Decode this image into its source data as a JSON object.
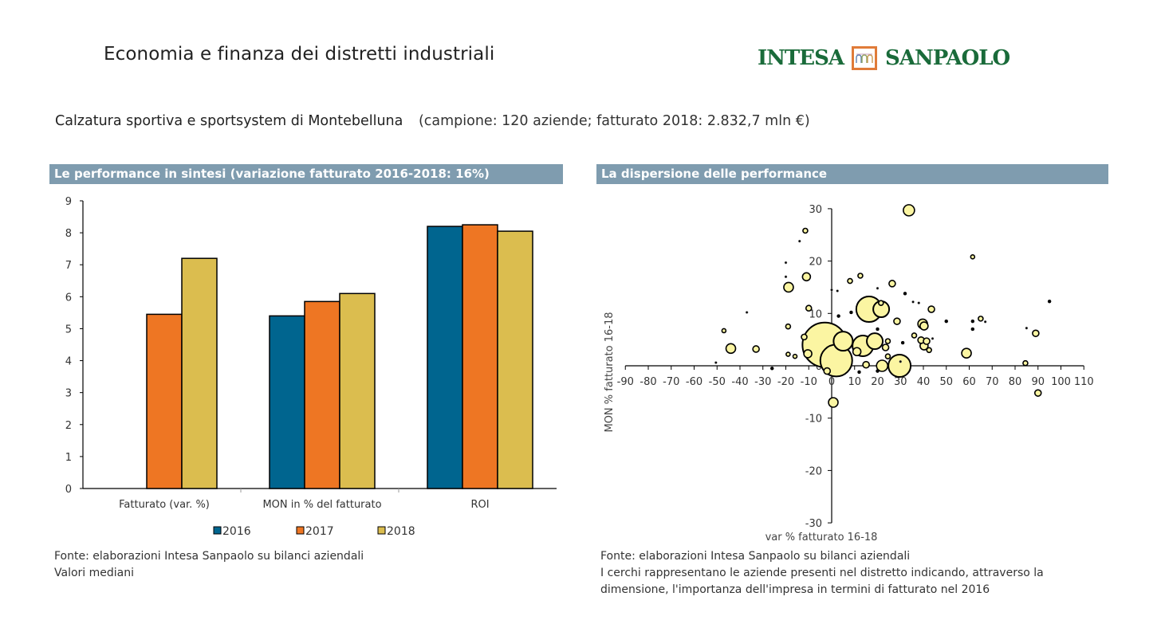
{
  "header": {
    "title": "Economia e finanza dei distretti industriali",
    "logo_left": "INTESA",
    "logo_right": "SANPAOLO",
    "logo_icon": "arches-icon"
  },
  "subtitle": {
    "district": "Calzatura sportiva e sportsystem di Montebelluna",
    "details": "(campione: 120 aziende; fatturato 2018: 2.832,7 mln €)"
  },
  "colors": {
    "header_bar": "#7f9caf",
    "s2016": "#00658f",
    "s2017": "#ee7623",
    "s2018": "#dbbd4f",
    "bubble": "#fbf5a2",
    "logo_green": "#1a6b3a",
    "logo_orange": "#e07b39"
  },
  "left_panel": {
    "header": "Le performance in sintesi (variazione fatturato 2016-2018: 16%)",
    "notes": [
      "Fonte: elaborazioni Intesa Sanpaolo su bilanci aziendali",
      "Valori mediani"
    ]
  },
  "right_panel": {
    "header": "La dispersione delle performance",
    "notes": [
      "Fonte: elaborazioni Intesa Sanpaolo su bilanci aziendali",
      "I cerchi rappresentano le aziende presenti nel distretto indicando, attraverso la",
      "dimensione, l'importanza dell'impresa in termini di fatturato nel 2016"
    ]
  },
  "chart_data": [
    {
      "type": "bar",
      "title": "Le performance in sintesi (variazione fatturato 2016-2018: 16%)",
      "categories": [
        "Fatturato (var. %)",
        "MON in % del fatturato",
        "ROI"
      ],
      "series": [
        {
          "name": "2016",
          "values": [
            null,
            5.4,
            8.2
          ]
        },
        {
          "name": "2017",
          "values": [
            5.45,
            5.85,
            8.25
          ]
        },
        {
          "name": "2018",
          "values": [
            7.2,
            6.1,
            8.05
          ]
        }
      ],
      "ylim": [
        0,
        9
      ],
      "yticks": [
        0,
        1,
        2,
        3,
        4,
        5,
        6,
        7,
        8,
        9
      ],
      "xlabel": "",
      "ylabel": "",
      "legend": "bottom",
      "grid": false
    },
    {
      "type": "scatter",
      "title": "La dispersione delle performance",
      "xlabel": "var % fatturato 16-18",
      "ylabel": "MON % fatturato 16-18",
      "xlim": [
        -90,
        110
      ],
      "ylim": [
        -30,
        30
      ],
      "xticks": [
        -90,
        -80,
        -70,
        -60,
        -50,
        -40,
        -30,
        -20,
        -10,
        0,
        10,
        20,
        30,
        40,
        50,
        60,
        70,
        80,
        90,
        100,
        110
      ],
      "yticks": [
        -30,
        -20,
        -10,
        0,
        10,
        20,
        30
      ],
      "size_meaning": "fatturato 2016 (relative)",
      "points": [
        {
          "x": -3,
          "y": 4,
          "size": 28
        },
        {
          "x": 2,
          "y": 1,
          "size": 20
        },
        {
          "x": 16.3,
          "y": 10.8,
          "size": 16
        },
        {
          "x": 29.6,
          "y": 0,
          "size": 14
        },
        {
          "x": 13.6,
          "y": 3.8,
          "size": 13
        },
        {
          "x": 5,
          "y": 4.7,
          "size": 12
        },
        {
          "x": 21.6,
          "y": 10.8,
          "size": 10
        },
        {
          "x": 18.8,
          "y": 4.7,
          "size": 10
        },
        {
          "x": 33.7,
          "y": 29.7,
          "size": 7
        },
        {
          "x": 22,
          "y": 0,
          "size": 7
        },
        {
          "x": -18.8,
          "y": 15,
          "size": 6
        },
        {
          "x": -44,
          "y": 3.3,
          "size": 6
        },
        {
          "x": 58.8,
          "y": 2.4,
          "size": 6
        },
        {
          "x": 39.7,
          "y": 8,
          "size": 6
        },
        {
          "x": 0.7,
          "y": -7,
          "size": 6
        },
        {
          "x": -11,
          "y": 17,
          "size": 5
        },
        {
          "x": 40.3,
          "y": 7.6,
          "size": 5
        },
        {
          "x": 40.3,
          "y": 3.8,
          "size": 5
        },
        {
          "x": -10.4,
          "y": 2.3,
          "size": 5
        },
        {
          "x": 11,
          "y": 2.7,
          "size": 5
        },
        {
          "x": 23.5,
          "y": 3.5,
          "size": 4
        },
        {
          "x": 26.4,
          "y": 15.7,
          "size": 4
        },
        {
          "x": 28.5,
          "y": 8.5,
          "size": 4
        },
        {
          "x": 43.5,
          "y": 10.8,
          "size": 4
        },
        {
          "x": 39,
          "y": 4.9,
          "size": 4
        },
        {
          "x": 41.4,
          "y": 4.7,
          "size": 4
        },
        {
          "x": -33,
          "y": 3.2,
          "size": 4
        },
        {
          "x": 89,
          "y": 6.2,
          "size": 4
        },
        {
          "x": 90,
          "y": -5.2,
          "size": 4
        },
        {
          "x": -2,
          "y": -1,
          "size": 4
        },
        {
          "x": 15,
          "y": 0.2,
          "size": 4
        },
        {
          "x": -12,
          "y": 5.5,
          "size": 3.5
        },
        {
          "x": -10,
          "y": 11,
          "size": 3.5
        },
        {
          "x": -19,
          "y": 7.5,
          "size": 3
        },
        {
          "x": -11.5,
          "y": 25.8,
          "size": 3
        },
        {
          "x": 12.5,
          "y": 17.2,
          "size": 3
        },
        {
          "x": 8,
          "y": 16.2,
          "size": 3
        },
        {
          "x": 21.5,
          "y": 12,
          "size": 3
        },
        {
          "x": 24.5,
          "y": 4.7,
          "size": 3
        },
        {
          "x": 36,
          "y": 5.8,
          "size": 3
        },
        {
          "x": 42.5,
          "y": 3,
          "size": 3
        },
        {
          "x": 65,
          "y": 9,
          "size": 3
        },
        {
          "x": 84.5,
          "y": 0.5,
          "size": 3
        },
        {
          "x": 24.5,
          "y": 1.8,
          "size": 3
        },
        {
          "x": -47,
          "y": 6.7,
          "size": 2.5
        },
        {
          "x": -16,
          "y": 1.8,
          "size": 2.5
        },
        {
          "x": -19,
          "y": 2.2,
          "size": 2.5
        },
        {
          "x": 61.5,
          "y": 20.8,
          "size": 2.5
        },
        {
          "x": 95,
          "y": 12.3,
          "size": 2
        },
        {
          "x": 61.5,
          "y": 8.5,
          "size": 2
        },
        {
          "x": 61.5,
          "y": 7,
          "size": 2
        },
        {
          "x": 50,
          "y": 8.5,
          "size": 2
        },
        {
          "x": 8.5,
          "y": 10.2,
          "size": 2
        },
        {
          "x": 3,
          "y": 9.5,
          "size": 2
        },
        {
          "x": 32,
          "y": 13.8,
          "size": 2
        },
        {
          "x": 20,
          "y": 7,
          "size": 2
        },
        {
          "x": 31,
          "y": 4.4,
          "size": 2
        },
        {
          "x": -26,
          "y": -0.5,
          "size": 2
        },
        {
          "x": 12,
          "y": -1.2,
          "size": 2
        },
        {
          "x": 20,
          "y": -1,
          "size": 2
        },
        {
          "x": 30,
          "y": 0.8,
          "size": 1.5
        },
        {
          "x": 20,
          "y": 14.8,
          "size": 1.5
        },
        {
          "x": 35.5,
          "y": 12.2,
          "size": 1.5
        },
        {
          "x": -14,
          "y": 23.8,
          "size": 1.5
        },
        {
          "x": -20,
          "y": 17,
          "size": 1.5
        },
        {
          "x": -20,
          "y": 19.7,
          "size": 1.5
        },
        {
          "x": -37,
          "y": 10.2,
          "size": 1.5
        },
        {
          "x": -50.5,
          "y": 0.6,
          "size": 1.5
        },
        {
          "x": 0,
          "y": 14.5,
          "size": 1.5
        },
        {
          "x": 2.5,
          "y": 14.3,
          "size": 1.5
        },
        {
          "x": 67,
          "y": 8.4,
          "size": 1.5
        },
        {
          "x": 85,
          "y": 7.2,
          "size": 1.5
        },
        {
          "x": 44,
          "y": 5.2,
          "size": 1.5
        },
        {
          "x": 38,
          "y": 12,
          "size": 1.5
        }
      ]
    }
  ]
}
